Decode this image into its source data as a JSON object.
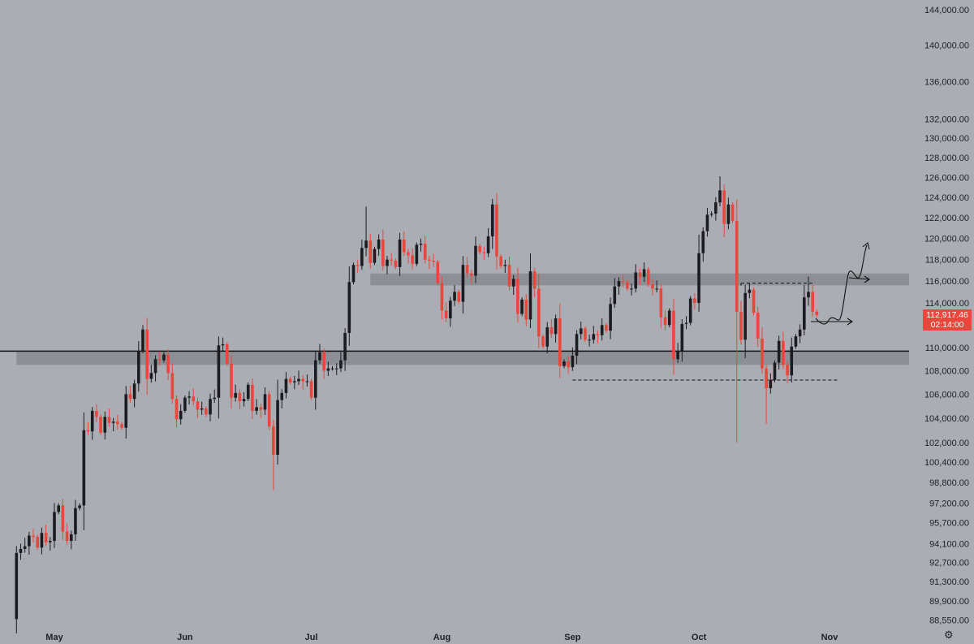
{
  "chart_data": {
    "type": "candlestick",
    "title": "",
    "y_scale": "log",
    "ylim": [
      87800,
      145500
    ],
    "grid": false,
    "start_date": "2025-04-22",
    "y_tick_labels": [
      "144,000.00",
      "140,000.00",
      "136,000.00",
      "132,000.00",
      "130,000.00",
      "128,000.00",
      "126,000.00",
      "124,000.00",
      "122,000.00",
      "120,000.00",
      "118,000.00",
      "116,000.00",
      "114,000.00",
      "110,000.00",
      "108,000.00",
      "106,000.00",
      "104,000.00",
      "102,000.00",
      "100,400.00",
      "98,800.00",
      "97,200.00",
      "95,700.00",
      "94,100.00",
      "92,700.00",
      "91,300.00",
      "89,900.00",
      "88,550.00"
    ],
    "x_tick_labels": [
      {
        "label": "May",
        "date": "2025-05-01"
      },
      {
        "label": "Jun",
        "date": "2025-06-01"
      },
      {
        "label": "Jul",
        "date": "2025-07-01"
      },
      {
        "label": "Aug",
        "date": "2025-08-01"
      },
      {
        "label": "Sep",
        "date": "2025-09-01"
      },
      {
        "label": "Oct",
        "date": "2025-10-01"
      },
      {
        "label": "Nov",
        "date": "2025-11-01"
      }
    ],
    "first_open": 88600,
    "closes": [
      93400,
      93700,
      93900,
      94700,
      94600,
      93800,
      94900,
      94200,
      94300,
      96500,
      97000,
      95000,
      94300,
      94800,
      96800,
      97000,
      103000,
      102900,
      104600,
      104100,
      102800,
      104100,
      103600,
      103700,
      103500,
      103200,
      106000,
      105600,
      106900,
      109700,
      111600,
      107300,
      107800,
      109000,
      108900,
      109400,
      107800,
      105600,
      103900,
      104600,
      105700,
      105800,
      105400,
      104700,
      104800,
      104300,
      105600,
      105700,
      110200,
      110300,
      108600,
      105700,
      106100,
      105400,
      105600,
      106800,
      104600,
      104900,
      104700,
      106000,
      103300,
      101000,
      105500,
      106100,
      107300,
      107000,
      107100,
      107300,
      107100,
      107100,
      105700,
      108900,
      109600,
      108000,
      108200,
      108200,
      108200,
      108900,
      111300,
      115900,
      117500,
      117400,
      119100,
      119800,
      117700,
      119000,
      119900,
      117400,
      118000,
      117900,
      117300,
      119900,
      118700,
      118400,
      117600,
      119400,
      119500,
      118000,
      117900,
      117800,
      115800,
      113300,
      112600,
      114200,
      115000,
      114100,
      117500,
      116700,
      116500,
      119300,
      118700,
      118600,
      120200,
      123300,
      118300,
      117400,
      117500,
      115500,
      116200,
      113000,
      114300,
      112500,
      116900,
      115300,
      111000,
      110100,
      111800,
      111200,
      112600,
      108400,
      108800,
      108300,
      109300,
      111200,
      111700,
      110700,
      110700,
      111200,
      111100,
      112000,
      111500,
      113900,
      115500,
      116000,
      115900,
      115300,
      115300,
      116800,
      116400,
      117100,
      115700,
      115300,
      115300,
      112700,
      112000,
      113300,
      109000,
      109700,
      112100,
      112200,
      114400,
      114000,
      118600,
      120700,
      122300,
      122400,
      123500,
      124700,
      121400,
      123300,
      121700,
      113200,
      110700,
      114900,
      115200,
      113100,
      110800,
      108200,
      106500,
      107200,
      108700,
      110600,
      108500,
      107600,
      110100,
      111000,
      111600,
      114500,
      115000,
      113200,
      112900
    ],
    "notable_wicks": [
      {
        "date": "2025-04-22",
        "low": 87600
      },
      {
        "date": "2025-05-22",
        "high": 112000
      },
      {
        "date": "2025-06-22",
        "low": 98200
      },
      {
        "date": "2025-07-14",
        "high": 123100
      },
      {
        "date": "2025-08-14",
        "high": 124400
      },
      {
        "date": "2025-10-06",
        "high": 126100
      },
      {
        "date": "2025-10-10",
        "low": 102000
      },
      {
        "date": "2025-10-17",
        "low": 103500
      },
      {
        "date": "2025-10-27",
        "high": 116400
      }
    ],
    "zones": [
      {
        "from_date": "2025-07-15",
        "low": 115600,
        "high": 116700
      },
      {
        "from_date": "2025-04-22",
        "low": 108500,
        "high": 109700,
        "line": 109700
      }
    ],
    "dashed_lines": [
      {
        "from_date": "2025-09-01",
        "to_date": "2025-11-03",
        "price": 107200
      },
      {
        "from_date": "2025-10-11",
        "to_date": "2025-10-28",
        "price": 115800
      }
    ],
    "last_price": {
      "value": "112,917.46",
      "countdown": "02:14:00"
    },
    "colors": {
      "background": "#abadb5",
      "up": "#1c1c20",
      "down": "#e8473b",
      "zone": "#8d8f96",
      "last_price": "#e8473b"
    }
  },
  "icons": {
    "settings": "gear-icon"
  }
}
